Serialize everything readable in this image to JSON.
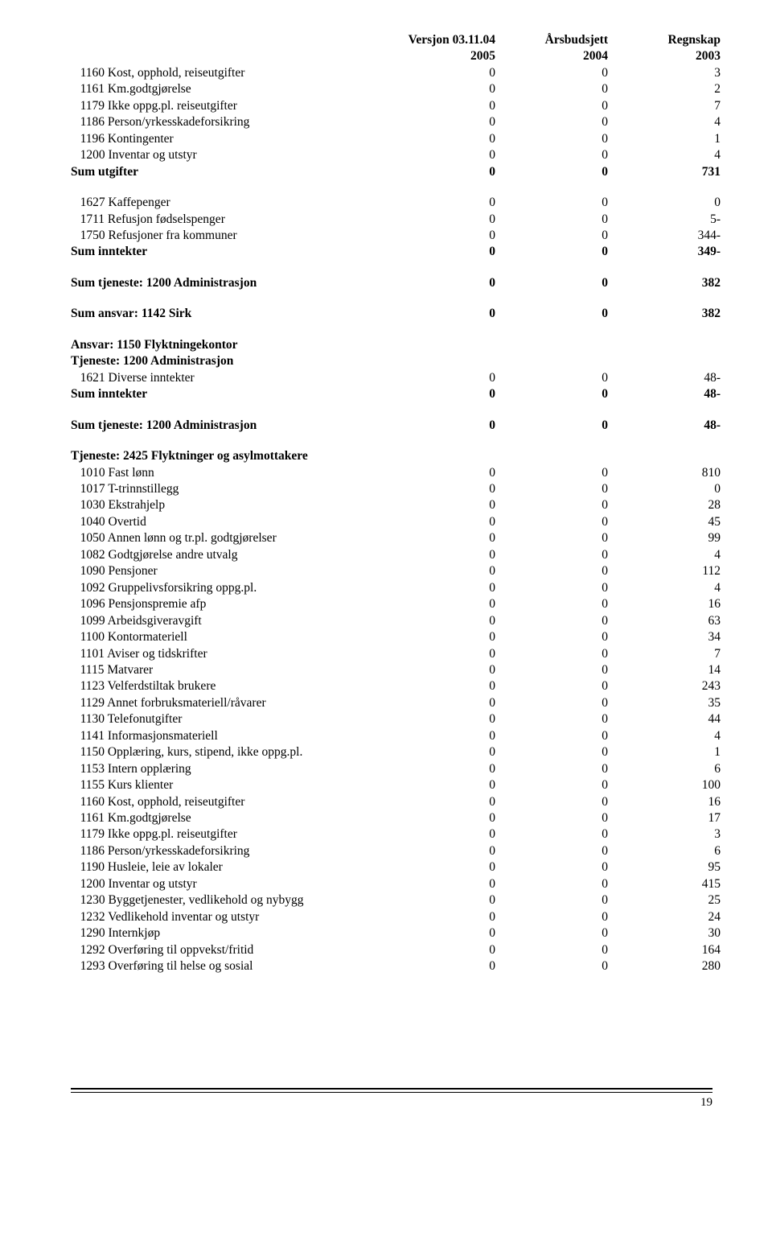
{
  "header_labels": {
    "c1a": "Versjon 03.11.04",
    "c1b": "2005",
    "c2a": "Årsbudsjett",
    "c2b": "2004",
    "c3a": "Regnskap",
    "c3b": "2003"
  },
  "block1": [
    {
      "label": "1160 Kost, opphold, reiseutgifter",
      "v": [
        "0",
        "0",
        "3"
      ]
    },
    {
      "label": "1161 Km.godtgjørelse",
      "v": [
        "0",
        "0",
        "2"
      ]
    },
    {
      "label": "1179 Ikke oppg.pl. reiseutgifter",
      "v": [
        "0",
        "0",
        "7"
      ]
    },
    {
      "label": "1186 Person/yrkesskadeforsikring",
      "v": [
        "0",
        "0",
        "4"
      ]
    },
    {
      "label": "1196 Kontingenter",
      "v": [
        "0",
        "0",
        "1"
      ]
    },
    {
      "label": "1200 Inventar og utstyr",
      "v": [
        "0",
        "0",
        "4"
      ]
    },
    {
      "label": "Sum utgifter",
      "v": [
        "0",
        "0",
        "731"
      ],
      "bold": true
    }
  ],
  "block2": [
    {
      "label": "1627 Kaffepenger",
      "v": [
        "0",
        "0",
        "0"
      ]
    },
    {
      "label": "1711 Refusjon fødselspenger",
      "v": [
        "0",
        "0",
        "5-"
      ]
    },
    {
      "label": "1750 Refusjoner fra kommuner",
      "v": [
        "0",
        "0",
        "344-"
      ]
    },
    {
      "label": "Sum inntekter",
      "v": [
        "0",
        "0",
        "349-"
      ],
      "bold": true
    }
  ],
  "sum_tj1": {
    "label": "Sum tjeneste: 1200 Administrasjon",
    "v": [
      "0",
      "0",
      "382"
    ]
  },
  "sum_ansvar1": {
    "label": "Sum ansvar: 1142 Sirk",
    "v": [
      "0",
      "0",
      "382"
    ]
  },
  "ansvar1150_h1": "Ansvar: 1150 Flyktningekontor",
  "ansvar1150_h2": "Tjeneste: 1200 Administrasjon",
  "block3": [
    {
      "label": "1621 Diverse inntekter",
      "v": [
        "0",
        "0",
        "48-"
      ]
    },
    {
      "label": "Sum inntekter",
      "v": [
        "0",
        "0",
        "48-"
      ],
      "bold": true
    }
  ],
  "sum_tj2": {
    "label": "Sum tjeneste: 1200 Administrasjon",
    "v": [
      "0",
      "0",
      "48-"
    ]
  },
  "tj2425_h": "Tjeneste: 2425 Flyktninger og asylmottakere",
  "block4": [
    {
      "label": "1010 Fast lønn",
      "v": [
        "0",
        "0",
        "810"
      ]
    },
    {
      "label": "1017 T-trinnstillegg",
      "v": [
        "0",
        "0",
        "0"
      ]
    },
    {
      "label": "1030 Ekstrahjelp",
      "v": [
        "0",
        "0",
        "28"
      ]
    },
    {
      "label": "1040 Overtid",
      "v": [
        "0",
        "0",
        "45"
      ]
    },
    {
      "label": "1050 Annen lønn og tr.pl. godtgjørelser",
      "v": [
        "0",
        "0",
        "99"
      ]
    },
    {
      "label": "1082 Godtgjørelse andre utvalg",
      "v": [
        "0",
        "0",
        "4"
      ]
    },
    {
      "label": "1090 Pensjoner",
      "v": [
        "0",
        "0",
        "112"
      ]
    },
    {
      "label": "1092 Gruppelivsforsikring oppg.pl.",
      "v": [
        "0",
        "0",
        "4"
      ]
    },
    {
      "label": "1096 Pensjonspremie afp",
      "v": [
        "0",
        "0",
        "16"
      ]
    },
    {
      "label": "1099 Arbeidsgiveravgift",
      "v": [
        "0",
        "0",
        "63"
      ]
    },
    {
      "label": "1100 Kontormateriell",
      "v": [
        "0",
        "0",
        "34"
      ]
    },
    {
      "label": "1101 Aviser og tidskrifter",
      "v": [
        "0",
        "0",
        "7"
      ]
    },
    {
      "label": "1115 Matvarer",
      "v": [
        "0",
        "0",
        "14"
      ]
    },
    {
      "label": "1123 Velferdstiltak brukere",
      "v": [
        "0",
        "0",
        "243"
      ]
    },
    {
      "label": "1129 Annet forbruksmateriell/råvarer",
      "v": [
        "0",
        "0",
        "35"
      ]
    },
    {
      "label": "1130 Telefonutgifter",
      "v": [
        "0",
        "0",
        "44"
      ]
    },
    {
      "label": "1141 Informasjonsmateriell",
      "v": [
        "0",
        "0",
        "4"
      ]
    },
    {
      "label": "1150 Opplæring, kurs, stipend, ikke oppg.pl.",
      "v": [
        "0",
        "0",
        "1"
      ]
    },
    {
      "label": "1153 Intern opplæring",
      "v": [
        "0",
        "0",
        "6"
      ]
    },
    {
      "label": "1155 Kurs klienter",
      "v": [
        "0",
        "0",
        "100"
      ]
    },
    {
      "label": "1160 Kost, opphold, reiseutgifter",
      "v": [
        "0",
        "0",
        "16"
      ]
    },
    {
      "label": "1161 Km.godtgjørelse",
      "v": [
        "0",
        "0",
        "17"
      ]
    },
    {
      "label": "1179 Ikke oppg.pl. reiseutgifter",
      "v": [
        "0",
        "0",
        "3"
      ]
    },
    {
      "label": "1186 Person/yrkesskadeforsikring",
      "v": [
        "0",
        "0",
        "6"
      ]
    },
    {
      "label": "1190 Husleie, leie av lokaler",
      "v": [
        "0",
        "0",
        "95"
      ]
    },
    {
      "label": "1200 Inventar og utstyr",
      "v": [
        "0",
        "0",
        "415"
      ]
    },
    {
      "label": "1230 Byggetjenester, vedlikehold og nybygg",
      "v": [
        "0",
        "0",
        "25"
      ]
    },
    {
      "label": "1232 Vedlikehold inventar og utstyr",
      "v": [
        "0",
        "0",
        "24"
      ]
    },
    {
      "label": "1290 Internkjøp",
      "v": [
        "0",
        "0",
        "30"
      ]
    },
    {
      "label": "1292 Overføring til oppvekst/fritid",
      "v": [
        "0",
        "0",
        "164"
      ]
    },
    {
      "label": "1293 Overføring til helse og sosial",
      "v": [
        "0",
        "0",
        "280"
      ]
    }
  ],
  "page_number": "19"
}
